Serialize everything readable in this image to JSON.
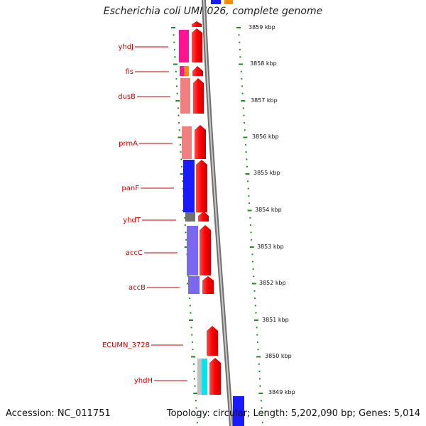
{
  "title": "Escherichia coli UMN026, complete genome",
  "accession": "Accession: NC_011751",
  "topology": "Topology: circular; Length: 5,202,090 bp; Genes: 5,014",
  "colors": {
    "label": "#cc0000",
    "gene": "#ff0000",
    "tick": "#228b22"
  },
  "scale_labels": [
    "3859 kbp",
    "3858 kbp",
    "3857 kbp",
    "3856 kbp",
    "3855 kbp",
    "3854 kbp",
    "3853 kbp",
    "3852 kbp",
    "3851 kbp",
    "3850 kbp",
    "3849 kbp"
  ],
  "gene_labels": [
    "yhdJ",
    "fis",
    "dusB",
    "prmA",
    "panF",
    "yhdT",
    "accC",
    "accB",
    "ECUMN_3728",
    "yhdH"
  ]
}
